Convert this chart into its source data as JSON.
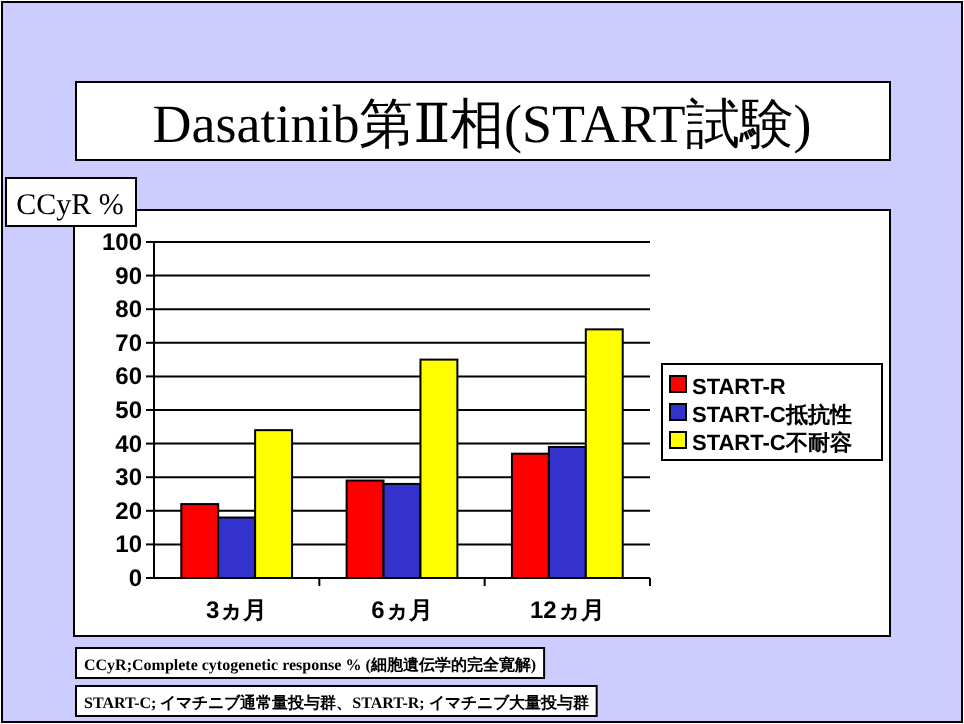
{
  "chart_data": {
    "type": "bar",
    "title": "Dasatinib第Ⅱ相(START試験)",
    "ylabel": "CCyR %",
    "categories": [
      "3ヵ月",
      "6ヵ月",
      "12ヵ月"
    ],
    "series": [
      {
        "name": "START-R",
        "color": "#ff0000",
        "values": [
          22,
          29,
          37
        ]
      },
      {
        "name": "START-C抵抗性",
        "color": "#3333cc",
        "values": [
          18,
          28,
          39
        ]
      },
      {
        "name": "START-C不耐容",
        "color": "#ffff00",
        "values": [
          44,
          65,
          74
        ]
      }
    ],
    "ylim": [
      0,
      100
    ],
    "yticks": [
      0,
      10,
      20,
      30,
      40,
      50,
      60,
      70,
      80,
      90,
      100
    ],
    "grid": "y",
    "legend": "right",
    "annotations": [
      "CCyR;Complete cytogenetic response % (細胞遺伝学的完全寛解)",
      "START-C; イマチニブ通常量投与群、START-R; イマチニブ大量投与群"
    ]
  }
}
